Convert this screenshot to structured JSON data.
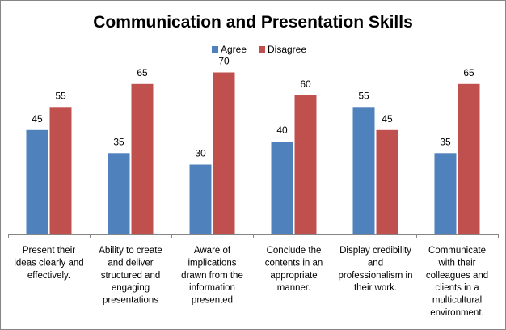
{
  "chart_data": {
    "type": "bar",
    "title": "Communication and Presentation Skills",
    "categories": [
      "Present their ideas clearly and effectively.",
      "Ability to create and deliver structured and engaging presentations",
      "Aware of implications drawn from the information presented",
      "Conclude the contents in an appropriate manner.",
      "Display credibility and professionalism in their work.",
      "Communicate with their colleagues and clients in a multicultural environment."
    ],
    "category_lines": [
      [
        "Present their",
        "ideas clearly and",
        "effectively."
      ],
      [
        "Ability to create",
        "and deliver",
        "structured and",
        "engaging",
        "presentations"
      ],
      [
        "Aware of",
        "implications",
        "drawn from the",
        "information",
        "presented"
      ],
      [
        "Conclude the",
        "contents in an",
        "appropriate",
        "manner."
      ],
      [
        "Display credibility",
        "and",
        "professionalism in",
        "their work."
      ],
      [
        "Communicate",
        "with their",
        "colleagues and",
        "clients in a",
        "multicultural",
        "environment."
      ]
    ],
    "series": [
      {
        "name": "Agree",
        "values": [
          45,
          35,
          30,
          40,
          55,
          35
        ],
        "color": "#4F81BD"
      },
      {
        "name": "Disagree",
        "values": [
          55,
          65,
          70,
          60,
          45,
          65
        ],
        "color": "#C0504D"
      }
    ],
    "ylim": [
      0,
      80
    ],
    "grid": false,
    "legend_position": "top-center",
    "data_labels": true
  }
}
